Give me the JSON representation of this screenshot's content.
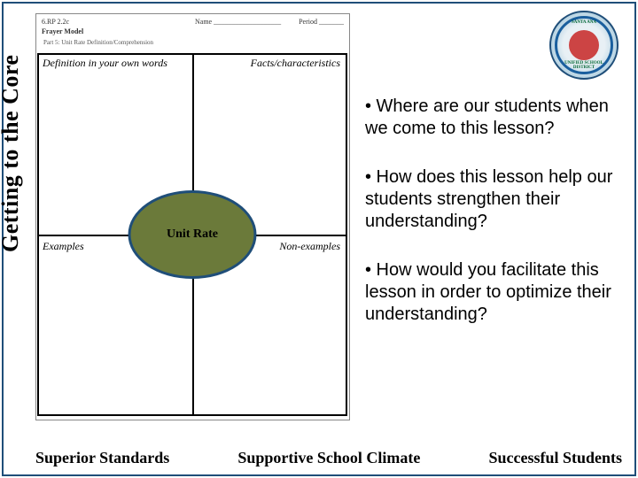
{
  "sidebar": {
    "title": "Getting to the Core"
  },
  "worksheet": {
    "code": "6.RP 2.2c",
    "name_label": "Name ___________________",
    "period_label": "Period _______",
    "model": "Frayer Model",
    "part": "Part 5: Unit Rate Definition/Comprehension"
  },
  "frayer": {
    "q1": "Definition in your own words",
    "q2": "Facts/characteristics",
    "q3": "Examples",
    "q4": "Non-examples",
    "center": "Unit Rate",
    "oval_fill": "#6b7a3a",
    "oval_border": "#1f4e79"
  },
  "logo": {
    "top_text": "SANTA ANA",
    "bottom_text": "UNIFIED SCHOOL DISTRICT"
  },
  "questions": {
    "q1": "• Where are our students when we come to this lesson?",
    "q2": "• How does this lesson help our students strengthen their understanding?",
    "q3": "• How would you facilitate this lesson in order to optimize their understanding?"
  },
  "footer": {
    "left": "Superior Standards",
    "center": "Supportive School Climate",
    "right": "Successful Students"
  },
  "colors": {
    "frame": "#1f4e79",
    "text": "#000000",
    "background": "#ffffff"
  }
}
